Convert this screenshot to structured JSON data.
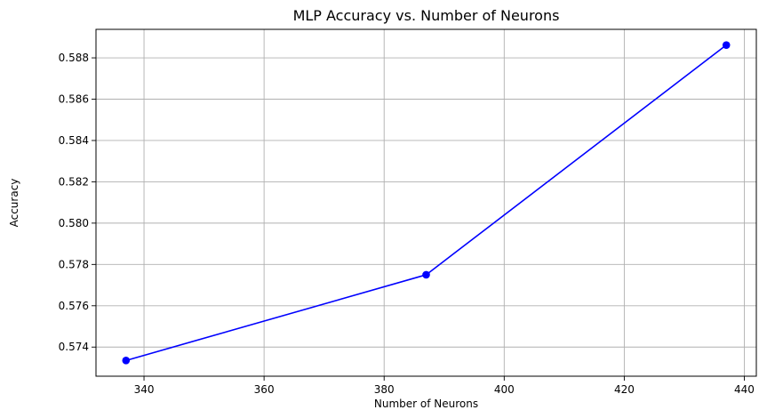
{
  "chart_data": {
    "type": "line",
    "title": "MLP Accuracy vs. Number of Neurons",
    "xlabel": "Number of Neurons",
    "ylabel": "Accuracy",
    "x": [
      337,
      387,
      437
    ],
    "series": [
      {
        "values": [
          0.57335,
          0.5775,
          0.58862
        ],
        "color": "#0000ff",
        "marker": "circle"
      }
    ],
    "xlim": [
      332,
      442
    ],
    "ylim": [
      0.57259,
      0.58938
    ],
    "xticks": [
      340,
      360,
      380,
      400,
      420,
      440
    ],
    "yticks": [
      0.574,
      0.576,
      0.578,
      0.58,
      0.582,
      0.584,
      0.586,
      0.588
    ],
    "xtick_labels": [
      "340",
      "360",
      "380",
      "400",
      "420",
      "440"
    ],
    "ytick_labels": [
      "0.574",
      "0.576",
      "0.578",
      "0.580",
      "0.582",
      "0.584",
      "0.586",
      "0.588"
    ],
    "grid": true,
    "legend": false
  }
}
